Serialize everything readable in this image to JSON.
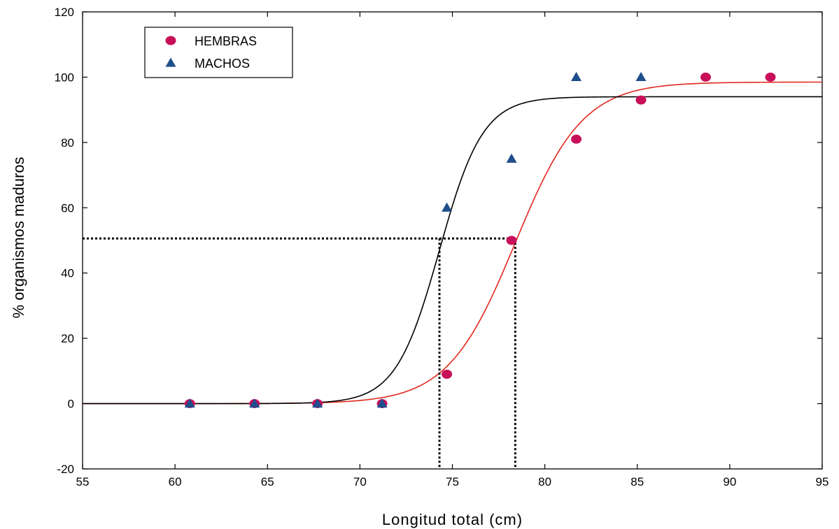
{
  "chart_data": {
    "type": "scatter",
    "title": "",
    "xlabel": "Longitud total (cm)",
    "ylabel": "% organismos maduros",
    "xlim": [
      55,
      95
    ],
    "ylim": [
      -20,
      120
    ],
    "xticks": [
      55,
      60,
      65,
      70,
      75,
      80,
      85,
      90,
      95
    ],
    "yticks": [
      -20,
      0,
      20,
      40,
      60,
      80,
      100,
      120
    ],
    "x_tick_labels": [
      "55",
      "60",
      "65",
      "70",
      "75",
      "80",
      "85",
      "90",
      "95"
    ],
    "y_tick_labels": [
      "-20",
      "0",
      "20",
      "40",
      "60",
      "80",
      "100",
      "120"
    ],
    "grid": false,
    "legend_position": "top-left",
    "series": [
      {
        "name": "HEMBRAS",
        "marker": "circle",
        "color": "#c8105a",
        "x": [
          60.8,
          64.3,
          67.7,
          71.2,
          74.7,
          78.2,
          81.7,
          85.2,
          88.7,
          92.2
        ],
        "y": [
          0,
          0,
          0,
          0,
          9,
          50,
          81,
          93,
          100,
          100
        ]
      },
      {
        "name": "MACHOS",
        "marker": "triangle",
        "color": "#1f4e8c",
        "x": [
          60.8,
          64.3,
          67.7,
          71.2,
          74.7,
          78.2,
          81.7,
          85.2
        ],
        "y": [
          0,
          0,
          0,
          0,
          60,
          75,
          100,
          100
        ]
      }
    ],
    "fitted_curves": [
      {
        "series": "HEMBRAS",
        "color": "#e0281e",
        "asymptote": 98.5,
        "midpoint": 78.4,
        "slope": 0.55
      },
      {
        "series": "MACHOS",
        "color": "#000000",
        "asymptote": 94,
        "midpoint": 74.3,
        "slope": 0.85
      }
    ],
    "reference_lines": {
      "y": 50.6,
      "x": [
        74.3,
        78.4
      ]
    }
  }
}
